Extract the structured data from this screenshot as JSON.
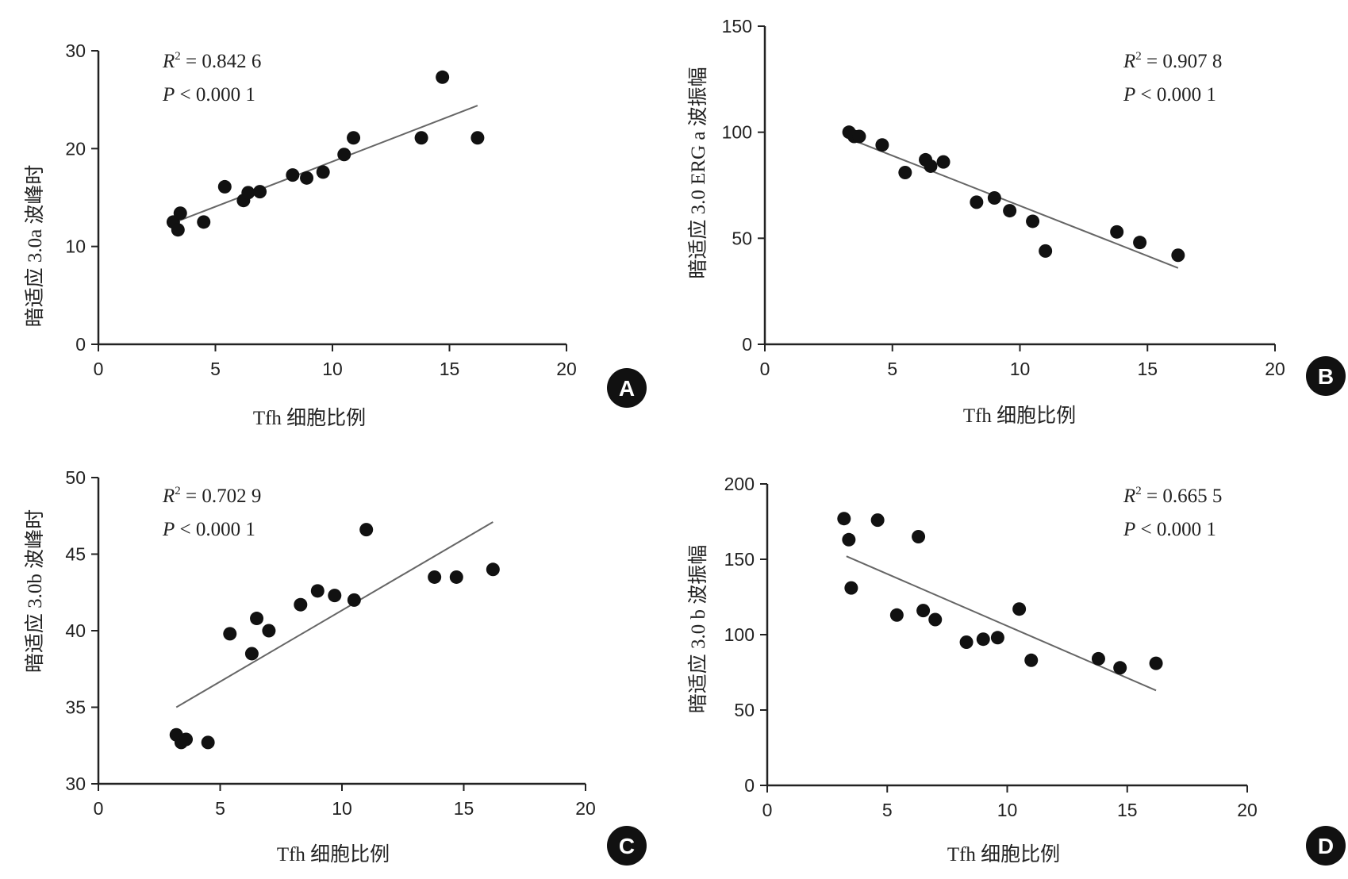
{
  "chart_data": [
    {
      "type": "scatter",
      "panel_label": "A",
      "xlabel": "Tfh 细胞比例",
      "ylabel": "暗适应 3.0a 波峰时",
      "xlim": [
        0,
        20
      ],
      "ylim": [
        0,
        30
      ],
      "xticks": [
        "0",
        "5",
        "10",
        "15",
        "20"
      ],
      "yticks": [
        "0",
        "10",
        "20",
        "30"
      ],
      "stats": {
        "r2_label": "R",
        "r2_sup": "2",
        "r2_value": " = 0.842 6",
        "p_label": "P",
        "p_value": " < 0.000 1"
      },
      "trendline": {
        "x": [
          3.3,
          16.2
        ],
        "y": [
          12.5,
          24.4
        ]
      },
      "x": [
        3.2,
        3.4,
        3.5,
        4.5,
        5.4,
        6.2,
        6.4,
        6.9,
        8.3,
        8.9,
        9.6,
        10.5,
        10.9,
        13.8,
        14.7,
        16.2
      ],
      "y": [
        12.5,
        11.7,
        13.4,
        12.5,
        16.1,
        14.7,
        15.5,
        15.6,
        17.3,
        17.0,
        17.6,
        19.4,
        21.1,
        21.1,
        27.3,
        21.1
      ]
    },
    {
      "type": "scatter",
      "panel_label": "B",
      "xlabel": "Tfh 细胞比例",
      "ylabel": "暗适应 3.0 ERG a 波振幅",
      "xlim": [
        0,
        20
      ],
      "ylim": [
        0,
        150
      ],
      "xticks": [
        "0",
        "5",
        "10",
        "15",
        "20"
      ],
      "yticks": [
        "0",
        "50",
        "100",
        "150"
      ],
      "stats": {
        "r2_label": "R",
        "r2_sup": "2",
        "r2_value": " = 0.907 8",
        "p_label": "P",
        "p_value": " < 0.000 1"
      },
      "trendline": {
        "x": [
          3.3,
          16.2
        ],
        "y": [
          97,
          36
        ]
      },
      "x": [
        3.3,
        3.5,
        3.7,
        4.6,
        5.5,
        6.3,
        6.5,
        7.0,
        8.3,
        9.0,
        9.6,
        10.5,
        11.0,
        13.8,
        14.7,
        16.2
      ],
      "y": [
        100,
        98,
        98,
        94,
        81,
        87,
        84,
        86,
        67,
        69,
        63,
        58,
        44,
        53,
        48,
        42
      ]
    },
    {
      "type": "scatter",
      "panel_label": "C",
      "xlabel": "Tfh 细胞比例",
      "ylabel": "暗适应 3.0b 波峰时",
      "xlim": [
        0,
        20
      ],
      "ylim": [
        30,
        50
      ],
      "xticks": [
        "0",
        "5",
        "10",
        "15",
        "20"
      ],
      "yticks": [
        "30",
        "35",
        "40",
        "45",
        "50"
      ],
      "stats": {
        "r2_label": "R",
        "r2_sup": "2",
        "r2_value": " = 0.702 9",
        "p_label": "P",
        "p_value": " < 0.000 1"
      },
      "trendline": {
        "x": [
          3.2,
          16.2
        ],
        "y": [
          35.0,
          47.1
        ]
      },
      "x": [
        3.2,
        3.4,
        3.6,
        4.5,
        5.4,
        6.3,
        6.5,
        7.0,
        8.3,
        9.0,
        9.7,
        10.5,
        11.0,
        13.8,
        14.7,
        16.2
      ],
      "y": [
        33.2,
        32.7,
        32.9,
        32.7,
        39.8,
        38.5,
        40.8,
        40.0,
        41.7,
        42.6,
        42.3,
        42.0,
        46.6,
        43.5,
        43.5,
        44.0
      ]
    },
    {
      "type": "scatter",
      "panel_label": "D",
      "xlabel": "Tfh 细胞比例",
      "ylabel": "暗适应 3.0 b 波振幅",
      "xlim": [
        0,
        20
      ],
      "ylim": [
        0,
        200
      ],
      "xticks": [
        "0",
        "5",
        "10",
        "15",
        "20"
      ],
      "yticks": [
        "0",
        "50",
        "100",
        "150",
        "200"
      ],
      "stats": {
        "r2_label": "R",
        "r2_sup": "2",
        "r2_value": " = 0.665 5",
        "p_label": "P",
        "p_value": " < 0.000 1"
      },
      "trendline": {
        "x": [
          3.3,
          16.2
        ],
        "y": [
          152,
          63
        ]
      },
      "x": [
        3.2,
        3.4,
        3.5,
        4.6,
        5.4,
        6.3,
        6.5,
        7.0,
        8.3,
        9.0,
        9.6,
        10.5,
        11.0,
        13.8,
        14.7,
        16.2
      ],
      "y": [
        177,
        163,
        131,
        176,
        113,
        165,
        116,
        110,
        95,
        97,
        98,
        117,
        83,
        84,
        78,
        81
      ]
    }
  ]
}
